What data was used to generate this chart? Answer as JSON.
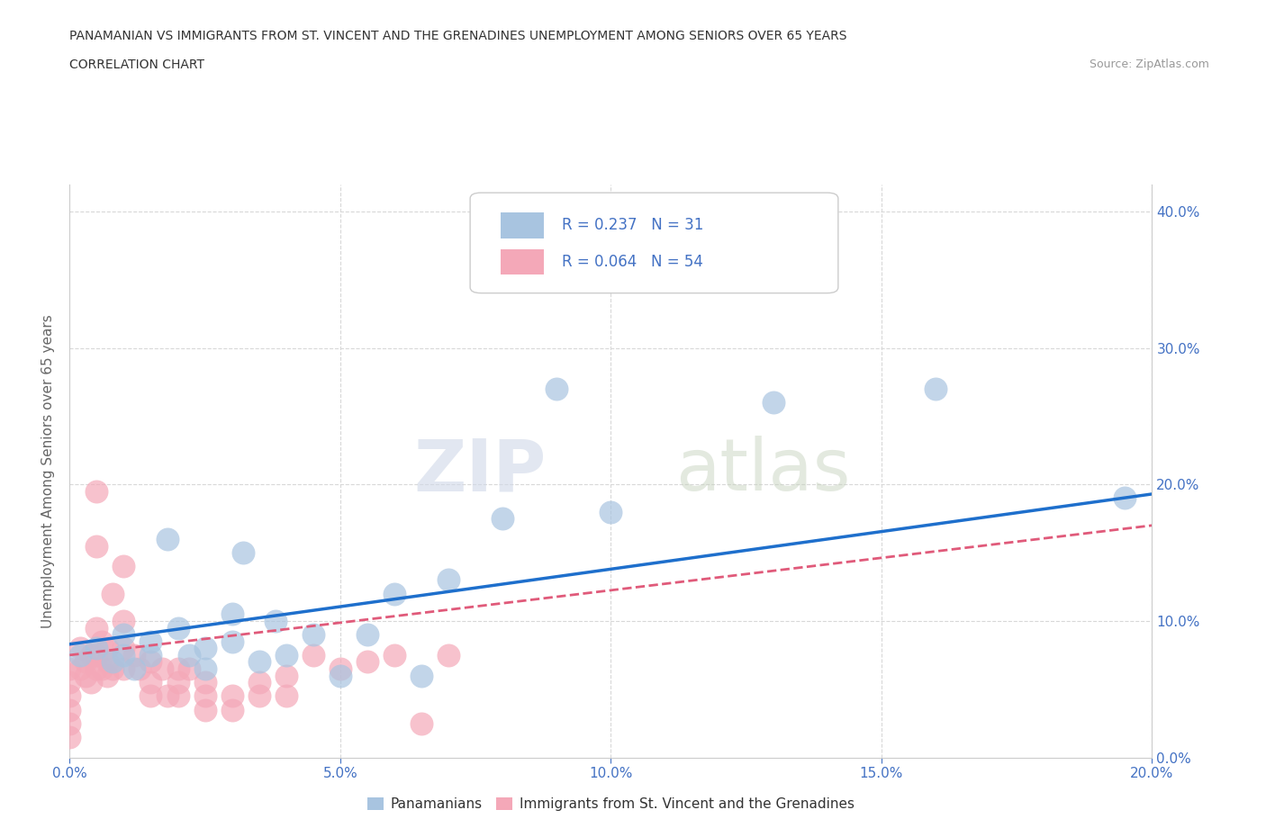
{
  "title_line1": "PANAMANIAN VS IMMIGRANTS FROM ST. VINCENT AND THE GRENADINES UNEMPLOYMENT AMONG SENIORS OVER 65 YEARS",
  "title_line2": "CORRELATION CHART",
  "source": "Source: ZipAtlas.com",
  "xlabel_ticks": [
    "0.0%",
    "5.0%",
    "10.0%",
    "15.0%",
    "20.0%"
  ],
  "ylabel_ticks": [
    "0.0%",
    "10.0%",
    "20.0%",
    "30.0%",
    "40.0%"
  ],
  "xlim": [
    0.0,
    0.2
  ],
  "ylim": [
    0.0,
    0.42
  ],
  "blue_r": "0.237",
  "blue_n": "31",
  "pink_r": "0.064",
  "pink_n": "54",
  "blue_color": "#a8c4e0",
  "pink_color": "#f4a8b8",
  "blue_line_color": "#1e6fcc",
  "pink_line_color": "#e05a7a",
  "watermark_zip": "ZIP",
  "watermark_atlas": "atlas",
  "legend1_label": "Panamanians",
  "legend2_label": "Immigrants from St. Vincent and the Grenadines",
  "blue_scatter_x": [
    0.002,
    0.005,
    0.008,
    0.01,
    0.01,
    0.012,
    0.015,
    0.015,
    0.018,
    0.02,
    0.022,
    0.025,
    0.025,
    0.03,
    0.03,
    0.032,
    0.035,
    0.038,
    0.04,
    0.045,
    0.05,
    0.055,
    0.06,
    0.065,
    0.07,
    0.08,
    0.09,
    0.1,
    0.13,
    0.16,
    0.195
  ],
  "blue_scatter_y": [
    0.075,
    0.08,
    0.07,
    0.09,
    0.075,
    0.065,
    0.085,
    0.075,
    0.16,
    0.095,
    0.075,
    0.08,
    0.065,
    0.105,
    0.085,
    0.15,
    0.07,
    0.1,
    0.075,
    0.09,
    0.06,
    0.09,
    0.12,
    0.06,
    0.13,
    0.175,
    0.27,
    0.18,
    0.26,
    0.27,
    0.19
  ],
  "pink_scatter_x": [
    0.0,
    0.0,
    0.0,
    0.0,
    0.0,
    0.0,
    0.002,
    0.002,
    0.003,
    0.003,
    0.004,
    0.004,
    0.005,
    0.005,
    0.005,
    0.005,
    0.005,
    0.006,
    0.006,
    0.007,
    0.007,
    0.007,
    0.008,
    0.008,
    0.01,
    0.01,
    0.01,
    0.01,
    0.012,
    0.013,
    0.015,
    0.015,
    0.015,
    0.017,
    0.018,
    0.02,
    0.02,
    0.02,
    0.022,
    0.025,
    0.025,
    0.025,
    0.03,
    0.03,
    0.035,
    0.035,
    0.04,
    0.04,
    0.045,
    0.05,
    0.055,
    0.06,
    0.065,
    0.07
  ],
  "pink_scatter_y": [
    0.065,
    0.055,
    0.045,
    0.035,
    0.025,
    0.015,
    0.08,
    0.065,
    0.07,
    0.06,
    0.075,
    0.055,
    0.195,
    0.155,
    0.095,
    0.075,
    0.065,
    0.085,
    0.065,
    0.08,
    0.07,
    0.06,
    0.12,
    0.065,
    0.14,
    0.1,
    0.08,
    0.065,
    0.075,
    0.065,
    0.07,
    0.055,
    0.045,
    0.065,
    0.045,
    0.065,
    0.055,
    0.045,
    0.065,
    0.055,
    0.045,
    0.035,
    0.045,
    0.035,
    0.055,
    0.045,
    0.06,
    0.045,
    0.075,
    0.065,
    0.07,
    0.075,
    0.025,
    0.075
  ],
  "blue_trendline_x": [
    0.0,
    0.2
  ],
  "blue_trendline_y": [
    0.083,
    0.193
  ],
  "pink_trendline_x": [
    0.0,
    0.2
  ],
  "pink_trendline_y": [
    0.075,
    0.17
  ],
  "grid_color": "#d8d8d8",
  "background_color": "#ffffff",
  "axis_color": "#cccccc",
  "tick_color": "#4472c4",
  "ylabel_text": "Unemployment Among Seniors over 65 years"
}
